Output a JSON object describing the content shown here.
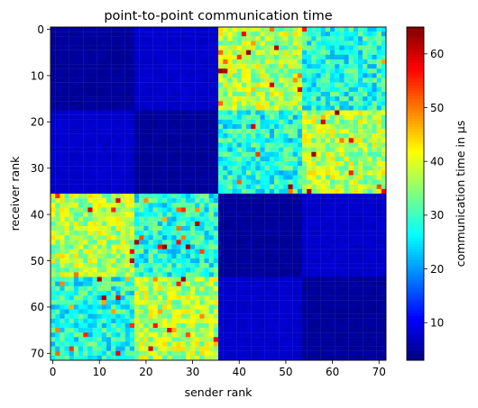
{
  "chart_data": {
    "type": "heatmap",
    "title": "point-to-point communication time",
    "xlabel": "sender rank",
    "ylabel": "receiver rank",
    "x_range": [
      0,
      71
    ],
    "y_range": [
      0,
      71
    ],
    "y_axis_inverted": true,
    "x_ticks": [
      "0",
      "10",
      "20",
      "30",
      "40",
      "50",
      "60",
      "70"
    ],
    "y_ticks": [
      "0",
      "10",
      "20",
      "30",
      "40",
      "50",
      "60",
      "70"
    ],
    "colorbar": {
      "label": "communication time in μs",
      "colormap": "jet",
      "vmin": 3,
      "vmax": 65,
      "ticks": [
        "10",
        "20",
        "30",
        "40",
        "50",
        "60"
      ]
    },
    "grid": false,
    "block_structure": {
      "node_size_ranks": 36,
      "socket_size_ranks": 18,
      "same_socket_time_us": 4,
      "same_node_other_socket_time_us": 7,
      "inter_node_near_time_us": 37,
      "inter_node_far_time_us": 28,
      "max_outlier_time_us": 65
    }
  }
}
